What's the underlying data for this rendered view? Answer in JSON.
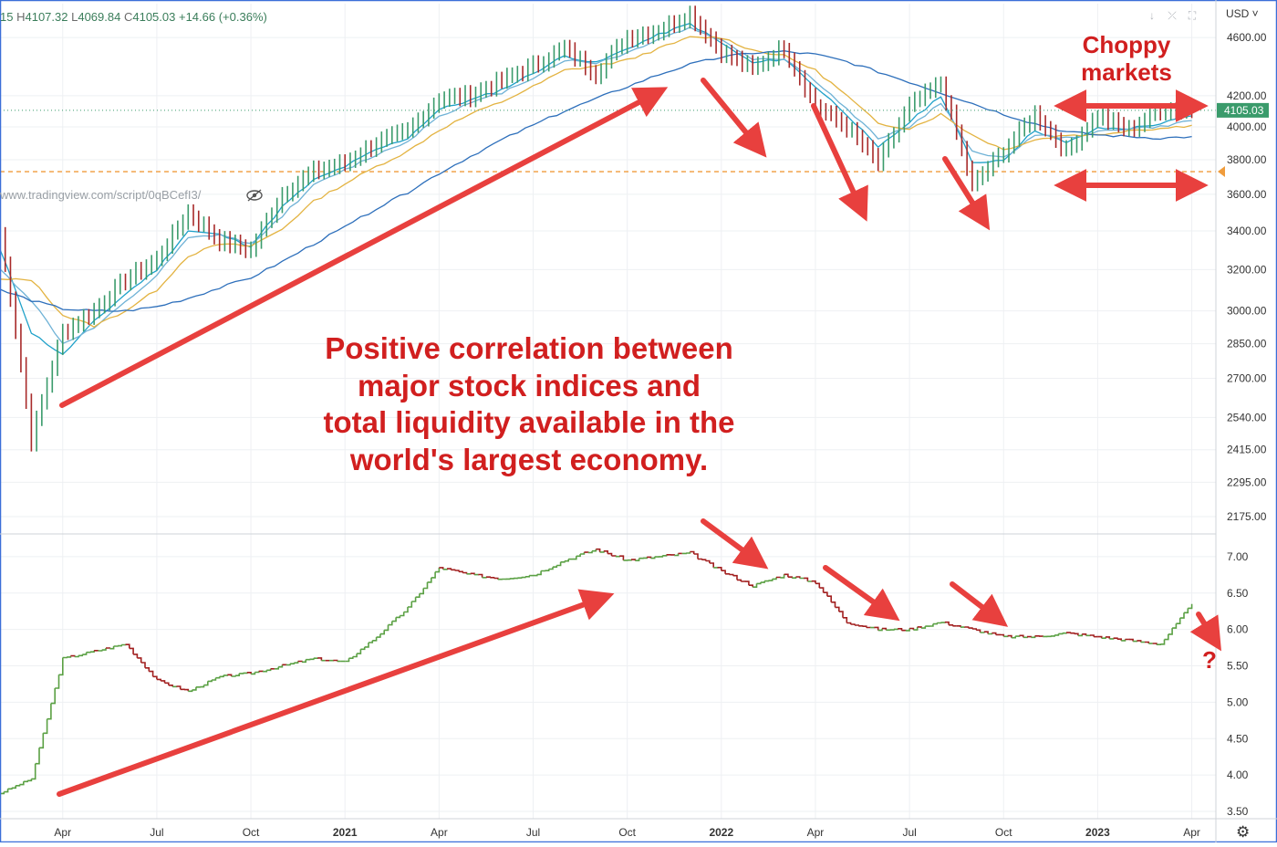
{
  "header": {
    "ohlc_prefix": "15",
    "high_label": "H",
    "high": "4107.32",
    "low_label": "L",
    "low": "4069.84",
    "close_label": "C",
    "close": "4105.03",
    "change": "+14.66 (+0.36%)"
  },
  "watermark": "www.tradingview.com/script/0qBCefI3/",
  "toolbar": {
    "currency": "USD ˅",
    "buttons": [
      "↓",
      "⤫",
      "⛶"
    ],
    "settings_icon": "gear-icon"
  },
  "annotations": {
    "main_lines": [
      "Positive correlation between",
      "major stock indices and",
      "total liquidity available in the",
      "world's largest economy."
    ],
    "choppy_lines": [
      "Choppy",
      "markets"
    ],
    "question": "?"
  },
  "colors": {
    "annotation": "#d11f1f",
    "arrow": "#e8403e",
    "price_up": "#3a9b6b",
    "price_down": "#a82a2a",
    "liquidity_up": "#5aa043",
    "liquidity_down": "#a11e1e",
    "ma_fast": "#1fa1c9",
    "ma_mid": "#6fb2d6",
    "ma_slow": "#e3b341",
    "ma_long": "#2d6fbb",
    "support_line": "#f09c3c",
    "last_price_badge": "#3a9b6b"
  },
  "chart_data": [
    {
      "type": "line",
      "name_in_chart": "",
      "title": "",
      "x_tick_labels": [
        "Apr",
        "Jul",
        "Oct",
        "2021",
        "Apr",
        "Jul",
        "Oct",
        "2022",
        "Apr",
        "Jul",
        "Oct",
        "2023",
        "Apr"
      ],
      "y_tick_labels": [
        "4600.00",
        "4200.00",
        "4000.00",
        "3800.00",
        "3600.00",
        "3400.00",
        "3200.00",
        "3000.00",
        "2850.00",
        "2700.00",
        "2540.00",
        "2415.00",
        "2295.00",
        "2175.00"
      ],
      "y_scale": "log",
      "ylim": [
        2120,
        4850
      ],
      "last_price": "4105.03",
      "support_level": 3730,
      "x": [
        "2020-02",
        "2020-03",
        "2020-04",
        "2020-05",
        "2020-06",
        "2020-07",
        "2020-08",
        "2020-09",
        "2020-10",
        "2020-11",
        "2020-12",
        "2021-01",
        "2021-02",
        "2021-03",
        "2021-04",
        "2021-05",
        "2021-06",
        "2021-07",
        "2021-08",
        "2021-09",
        "2021-10",
        "2021-11",
        "2021-12",
        "2022-01",
        "2022-02",
        "2022-03",
        "2022-04",
        "2022-05",
        "2022-06",
        "2022-07",
        "2022-08",
        "2022-09",
        "2022-10",
        "2022-11",
        "2022-12",
        "2023-01",
        "2023-02",
        "2023-03",
        "2023-04"
      ],
      "values": [
        3380,
        2450,
        2900,
        3000,
        3150,
        3250,
        3500,
        3350,
        3300,
        3600,
        3730,
        3780,
        3900,
        3970,
        4180,
        4200,
        4300,
        4400,
        4520,
        4350,
        4600,
        4650,
        4770,
        4500,
        4380,
        4530,
        4130,
        4000,
        3780,
        4130,
        4280,
        3650,
        3850,
        4080,
        3850,
        4070,
        3980,
        4110,
        4105
      ],
      "moving_averages": [
        {
          "name": "",
          "values": [
            3300,
            2900,
            2800,
            2950,
            3080,
            3200,
            3400,
            3380,
            3320,
            3530,
            3680,
            3760,
            3860,
            3930,
            4110,
            4170,
            4240,
            4350,
            4470,
            4420,
            4520,
            4620,
            4700,
            4560,
            4420,
            4450,
            4260,
            4080,
            3870,
            4030,
            4200,
            3780,
            3800,
            3980,
            3900,
            3990,
            3990,
            4020,
            4070
          ]
        },
        {
          "name": "",
          "values": [
            3200,
            3050,
            2850,
            2920,
            3040,
            3170,
            3360,
            3380,
            3330,
            3480,
            3650,
            3740,
            3830,
            3910,
            4070,
            4150,
            4220,
            4320,
            4440,
            4420,
            4490,
            4590,
            4670,
            4580,
            4450,
            4450,
            4300,
            4110,
            3930,
            4000,
            4150,
            3850,
            3810,
            3950,
            3930,
            3970,
            3990,
            4000,
            4040
          ]
        },
        {
          "name": "",
          "values": [
            3150,
            3150,
            2980,
            2930,
            3000,
            3100,
            3270,
            3330,
            3320,
            3410,
            3560,
            3660,
            3760,
            3850,
            3980,
            4080,
            4160,
            4260,
            4370,
            4400,
            4440,
            4520,
            4600,
            4600,
            4510,
            4470,
            4370,
            4200,
            4020,
            3990,
            4080,
            3950,
            3860,
            3920,
            3950,
            3950,
            3980,
            3990,
            4010
          ]
        },
        {
          "name": "",
          "values": [
            3100,
            3050,
            3010,
            3000,
            3000,
            3020,
            3060,
            3110,
            3160,
            3240,
            3330,
            3420,
            3520,
            3610,
            3720,
            3820,
            3920,
            4010,
            4100,
            4180,
            4260,
            4340,
            4410,
            4460,
            4490,
            4500,
            4480,
            4430,
            4360,
            4290,
            4220,
            4150,
            4080,
            4020,
            3970,
            3950,
            3940,
            3930,
            3940
          ]
        }
      ]
    },
    {
      "type": "line",
      "title": "",
      "y_tick_labels": [
        "7.00",
        "6.50",
        "6.00",
        "5.50",
        "5.00",
        "4.50",
        "4.00",
        "3.50"
      ],
      "ylim": [
        3.4,
        7.3
      ],
      "x": [
        "2020-02",
        "2020-03",
        "2020-04",
        "2020-05",
        "2020-06",
        "2020-07",
        "2020-08",
        "2020-09",
        "2020-10",
        "2020-11",
        "2020-12",
        "2021-01",
        "2021-02",
        "2021-03",
        "2021-04",
        "2021-05",
        "2021-06",
        "2021-07",
        "2021-08",
        "2021-09",
        "2021-10",
        "2021-11",
        "2021-12",
        "2022-01",
        "2022-02",
        "2022-03",
        "2022-04",
        "2022-05",
        "2022-06",
        "2022-07",
        "2022-08",
        "2022-09",
        "2022-10",
        "2022-11",
        "2022-12",
        "2023-01",
        "2023-02",
        "2023-03",
        "2023-04"
      ],
      "values": [
        3.75,
        3.95,
        5.6,
        5.7,
        5.8,
        5.3,
        5.15,
        5.35,
        5.4,
        5.5,
        5.6,
        5.55,
        5.9,
        6.3,
        6.85,
        6.75,
        6.7,
        6.75,
        6.95,
        7.1,
        6.95,
        7.0,
        7.05,
        6.8,
        6.6,
        6.75,
        6.65,
        6.1,
        6.0,
        6.0,
        6.1,
        6.0,
        5.9,
        5.9,
        5.95,
        5.9,
        5.85,
        5.8,
        6.35
      ]
    }
  ]
}
